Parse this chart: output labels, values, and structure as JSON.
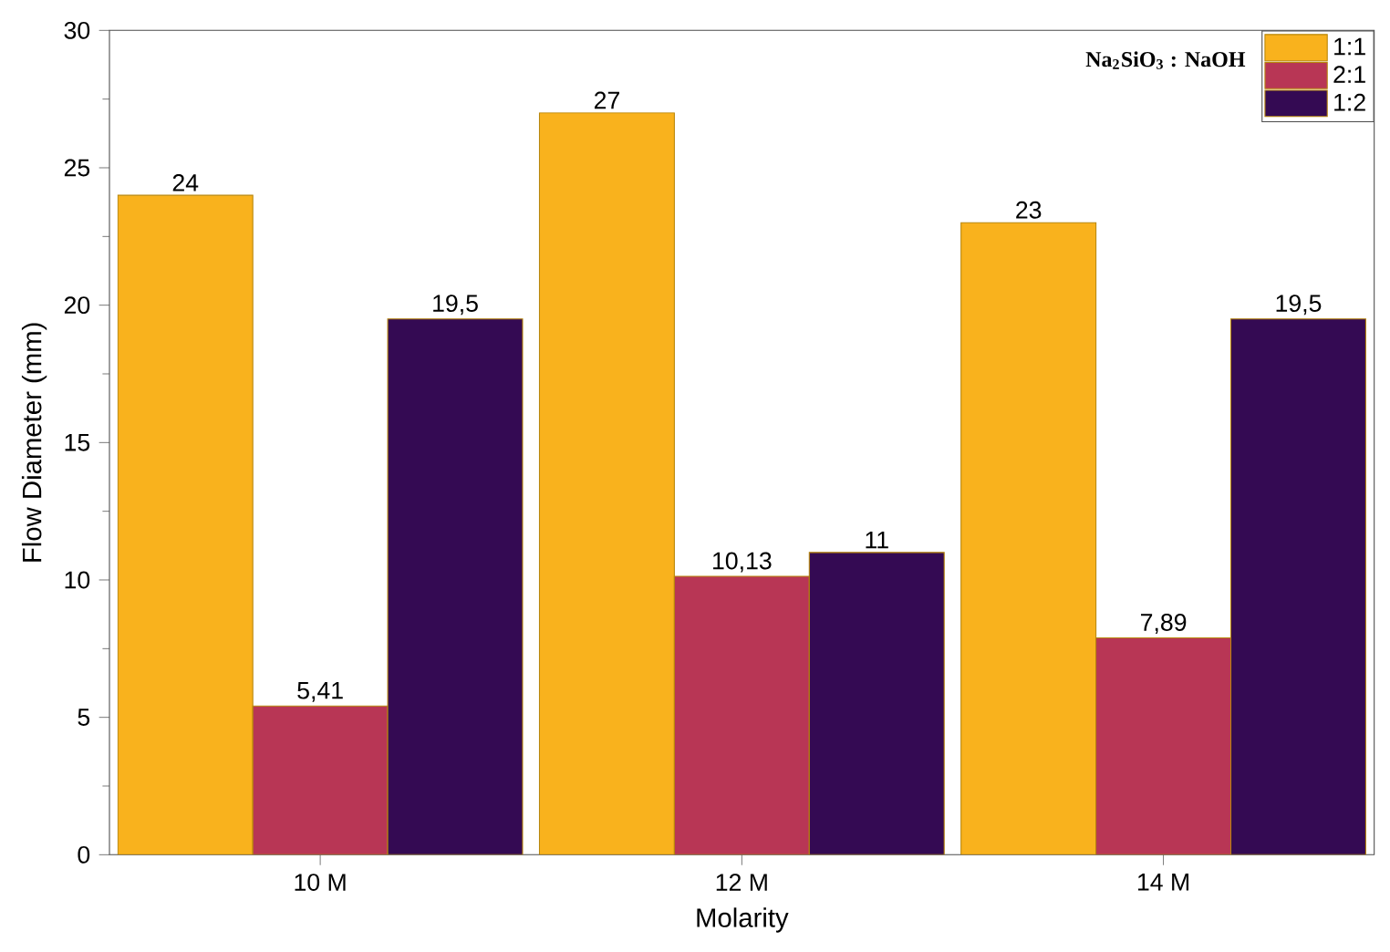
{
  "chart_data": {
    "type": "bar",
    "xlabel": "Molarity",
    "ylabel": "Flow Diameter (mm)",
    "legend_title": "Na$_{2}$SiO$_{3}$ : NaOH",
    "categories": [
      "10 M",
      "12 M",
      "14 M"
    ],
    "series": [
      {
        "name": "1:1",
        "color": "#f9b21d",
        "values": [
          24,
          27,
          23
        ],
        "value_labels": [
          "24",
          "27",
          "23"
        ]
      },
      {
        "name": "2:1",
        "color": "#b83655",
        "values": [
          5.41,
          10.13,
          7.89
        ],
        "value_labels": [
          "5,41",
          "10,13",
          "7,89"
        ]
      },
      {
        "name": "1:2",
        "color": "#340a53",
        "values": [
          19.5,
          11,
          19.5
        ],
        "value_labels": [
          "19,5",
          "11",
          "19,5"
        ]
      }
    ],
    "ylim": [
      0,
      30
    ],
    "yticks": [
      0,
      5,
      10,
      15,
      20,
      25,
      30
    ],
    "legend": "top right",
    "grid": false
  }
}
